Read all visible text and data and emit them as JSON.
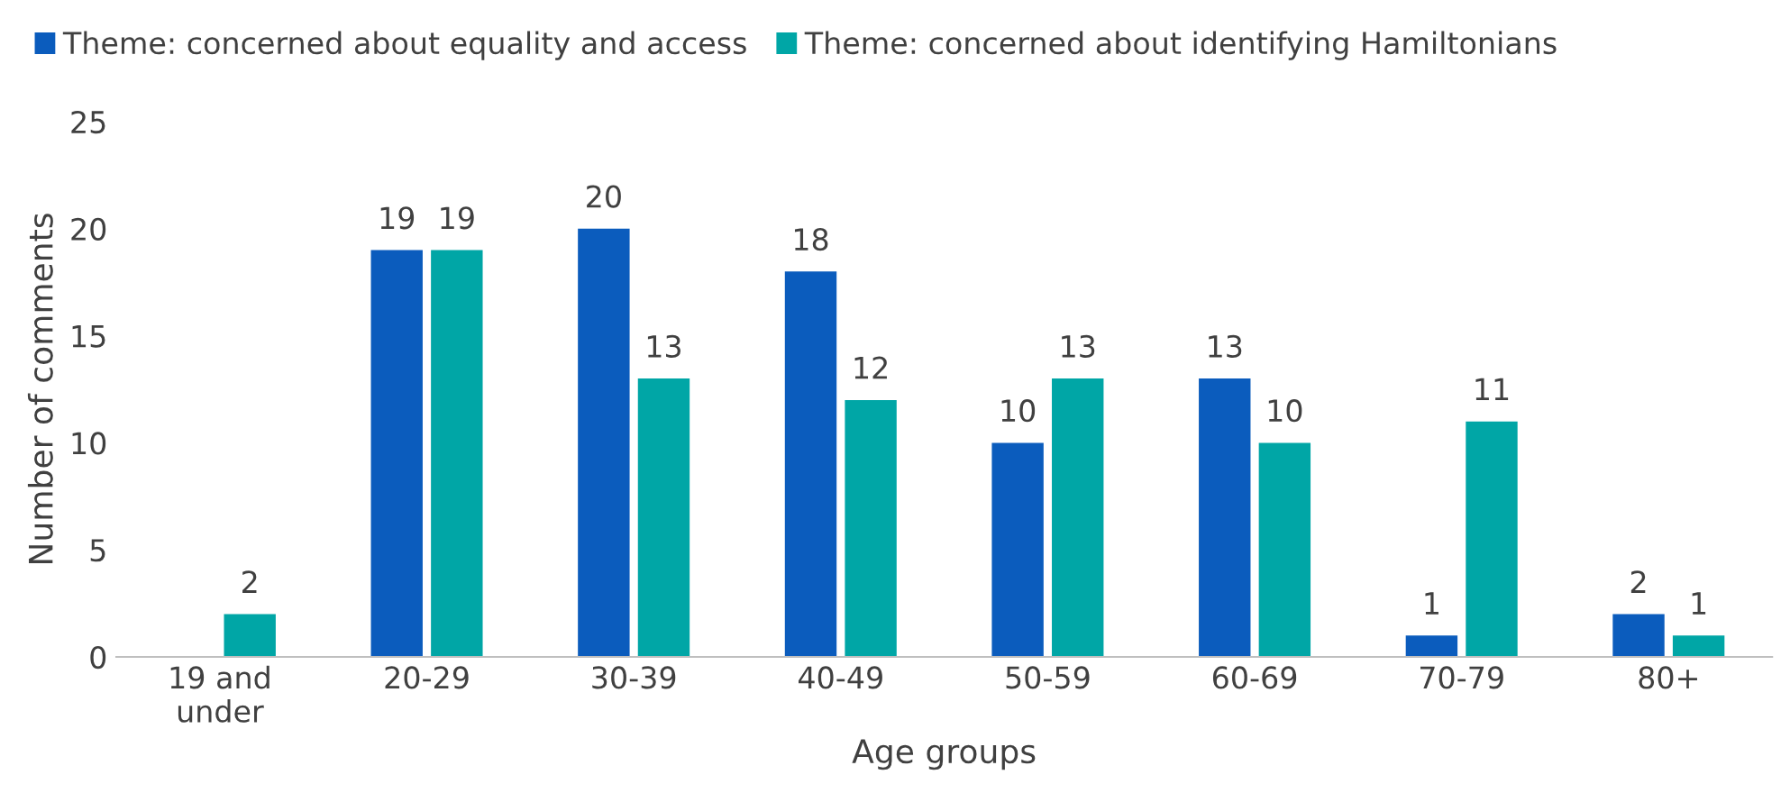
{
  "chart_data": {
    "type": "bar",
    "categories": [
      "19 and\nunder",
      "20-29",
      "30-39",
      "40-49",
      "50-59",
      "60-69",
      "70-79",
      "80+"
    ],
    "series": [
      {
        "name": "Theme: concerned about equality and access",
        "color": "#0b5cbd",
        "values": [
          null,
          19,
          20,
          18,
          10,
          13,
          1,
          2
        ]
      },
      {
        "name": "Theme: concerned about identifying Hamiltonians",
        "color": "#00a6a6",
        "values": [
          2,
          19,
          13,
          12,
          13,
          10,
          11,
          1
        ]
      }
    ],
    "xlabel": "Age groups",
    "ylabel": "Number of comments",
    "ylim": [
      0,
      25
    ],
    "yticks": [
      0,
      5,
      10,
      15,
      20,
      25
    ],
    "grid": false,
    "legend": "top left",
    "data_labels": true
  }
}
